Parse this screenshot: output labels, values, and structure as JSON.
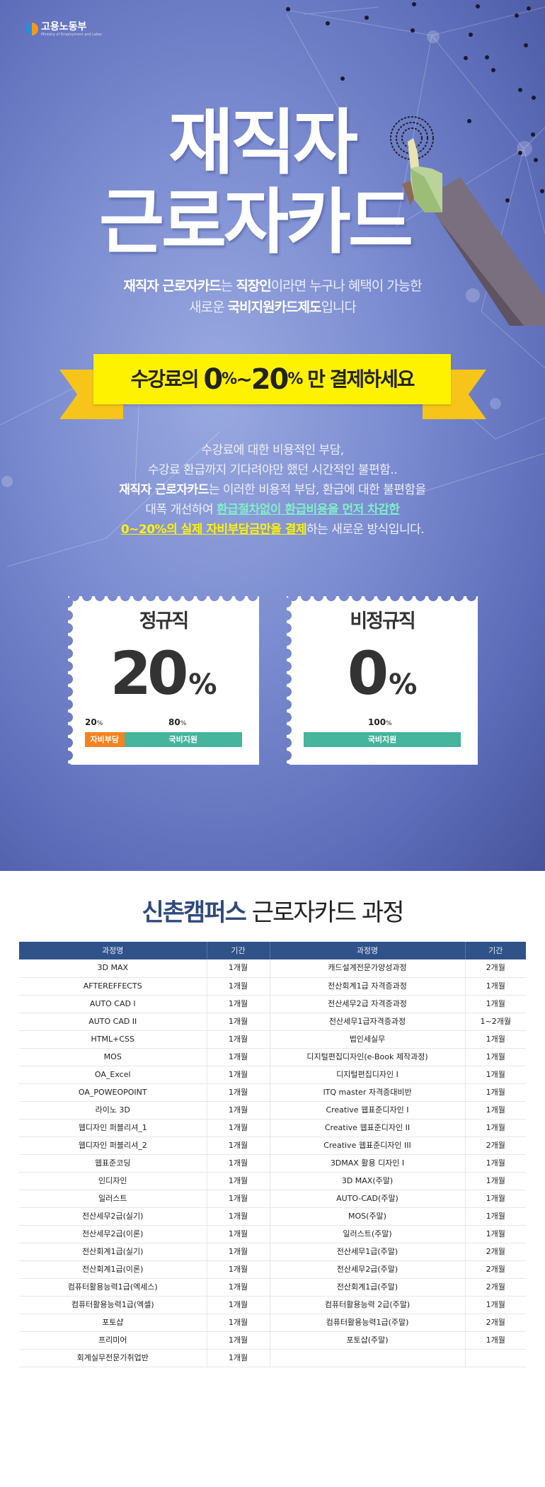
{
  "logo": {
    "name": "고용노동부",
    "sub": "Ministry of Employment and Labor"
  },
  "hero": {
    "title_line1": "재직자",
    "title_line2": "근로자카드",
    "sub1": {
      "b1": "재직자 근로자카드",
      "t1": "는 ",
      "b2": "직장인",
      "t2": "이라면 누구나 혜택이 가능한"
    },
    "sub2": {
      "t1": "새로운 ",
      "b1": "국비지원카드제도",
      "t2": "입니다"
    }
  },
  "ribbon": {
    "pre": "수강료의 ",
    "n1": "0",
    "p1": "%",
    "tilde": "~",
    "n2": "20",
    "p2": "%",
    "post": " 만 결제하세요"
  },
  "paragraph": {
    "l1": "수강료에 대한 비용적인 부담,",
    "l2": "수강료 환급까지 기다려야만 했던 시간적인 불편함..",
    "l3b": "재직자 근로자카드",
    "l3": "는 이러한 비용적 부담, 환급에 대한 불편함을",
    "l4": "대폭 개선하여 ",
    "l4g": "환급절차없이 환급비용을 먼저 차감한",
    "l5y": "0~20%의 실제 자비부담금만을 결제",
    "l5": "하는 새로운 방식입니다."
  },
  "stamps": [
    {
      "title": "정규직",
      "value": "20",
      "unit": "%",
      "self_pct": 20,
      "gov_pct": 80,
      "self_label_n": "20",
      "gov_label_n": "80",
      "pct": "%",
      "self_text": "자비부담",
      "gov_text": "국비지원"
    },
    {
      "title": "비정규직",
      "value": "0",
      "unit": "%",
      "gov_pct": 100,
      "gov_label_n": "100",
      "pct": "%",
      "gov_text": "국비지원"
    }
  ],
  "colors": {
    "self": "#f58220",
    "gov": "#45b59c",
    "header": "#2f5289",
    "ribbon": "#fff200"
  },
  "section": {
    "bold": "신촌캠퍼스",
    "rest": " 근로자카드 과정"
  },
  "table": {
    "headers": [
      "과정명",
      "기간",
      "과정명",
      "기간"
    ],
    "rows": [
      [
        "3D MAX",
        "1개월",
        "캐드설계전문가양성과정",
        "2개월"
      ],
      [
        "AFTEREFFECTS",
        "1개월",
        "전산회계1급 자격증과정",
        "1개월"
      ],
      [
        "AUTO CAD I",
        "1개월",
        "전산세무2급 자격증과정",
        "1개월"
      ],
      [
        "AUTO CAD II",
        "1개월",
        "전산세무1급자격증과정",
        "1~2개월"
      ],
      [
        "HTML+CSS",
        "1개월",
        "법인세실무",
        "1개월"
      ],
      [
        "MOS",
        "1개월",
        "디지털편집디자인(e-Book 제작과정)",
        "1개월"
      ],
      [
        "OA_Excel",
        "1개월",
        "디지털편집디자인 I",
        "1개월"
      ],
      [
        "OA_POWEOPOINT",
        "1개월",
        "ITQ master 자격증대비반",
        "1개월"
      ],
      [
        "라이노 3D",
        "1개월",
        "Creative 웹표준디자인 I",
        "1개월"
      ],
      [
        "웹디자인 퍼블리셔_1",
        "1개월",
        "Creative 웹표준디자인 II",
        "1개월"
      ],
      [
        "웹디자인 퍼블리셔_2",
        "1개월",
        "Creative 웹표준디자인 III",
        "2개월"
      ],
      [
        "웹표준코딩",
        "1개월",
        "3DMAX 활용 디자인 I",
        "1개월"
      ],
      [
        "인디자인",
        "1개월",
        "3D MAX(주말)",
        "1개월"
      ],
      [
        "일러스트",
        "1개월",
        "AUTO-CAD(주말)",
        "1개월"
      ],
      [
        "전산세무2급(실기)",
        "1개월",
        "MOS(주말)",
        "1개월"
      ],
      [
        "전산세무2급(이론)",
        "1개월",
        "일러스트(주말)",
        "1개월"
      ],
      [
        "전산회계1급(실기)",
        "1개월",
        "전산세무1급(주말)",
        "2개월"
      ],
      [
        "전산회계1급(이론)",
        "1개월",
        "전산세무2급(주말)",
        "2개월"
      ],
      [
        "컴퓨터활용능력1급(엑세스)",
        "1개월",
        "전산회계1급(주말)",
        "2개월"
      ],
      [
        "컴퓨터활용능력1급(엑셀)",
        "1개월",
        "컴퓨터활용능력 2급(주말)",
        "1개월"
      ],
      [
        "포토샵",
        "1개월",
        "컴퓨터활용능력1급(주말)",
        "2개월"
      ],
      [
        "프리미어",
        "1개월",
        "포토샵(주말)",
        "1개월"
      ],
      [
        "회계실무전문가취업반",
        "1개월",
        "",
        ""
      ]
    ]
  }
}
